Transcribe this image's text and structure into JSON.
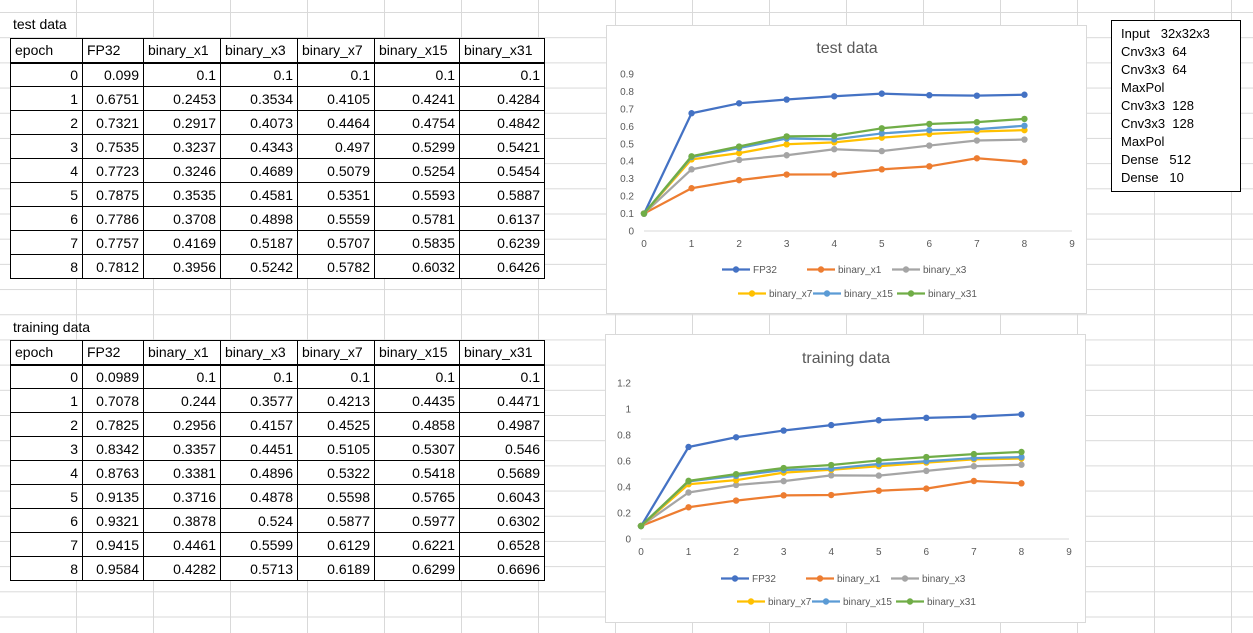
{
  "tables": [
    {
      "caption": "test data",
      "headers": [
        "epoch",
        "FP32",
        "binary_x1",
        "binary_x3",
        "binary_x7",
        "binary_x15",
        "binary_x31"
      ],
      "rows": [
        [
          "0",
          "0.099",
          "0.1",
          "0.1",
          "0.1",
          "0.1",
          "0.1"
        ],
        [
          "1",
          "0.6751",
          "0.2453",
          "0.3534",
          "0.4105",
          "0.4241",
          "0.4284"
        ],
        [
          "2",
          "0.7321",
          "0.2917",
          "0.4073",
          "0.4464",
          "0.4754",
          "0.4842"
        ],
        [
          "3",
          "0.7535",
          "0.3237",
          "0.4343",
          "0.497",
          "0.5299",
          "0.5421"
        ],
        [
          "4",
          "0.7723",
          "0.3246",
          "0.4689",
          "0.5079",
          "0.5254",
          "0.5454"
        ],
        [
          "5",
          "0.7875",
          "0.3535",
          "0.4581",
          "0.5351",
          "0.5593",
          "0.5887"
        ],
        [
          "6",
          "0.7786",
          "0.3708",
          "0.4898",
          "0.5559",
          "0.5781",
          "0.6137"
        ],
        [
          "7",
          "0.7757",
          "0.4169",
          "0.5187",
          "0.5707",
          "0.5835",
          "0.6239"
        ],
        [
          "8",
          "0.7812",
          "0.3956",
          "0.5242",
          "0.5782",
          "0.6032",
          "0.6426"
        ]
      ]
    },
    {
      "caption": "training data",
      "headers": [
        "epoch",
        "FP32",
        "binary_x1",
        "binary_x3",
        "binary_x7",
        "binary_x15",
        "binary_x31"
      ],
      "rows": [
        [
          "0",
          "0.0989",
          "0.1",
          "0.1",
          "0.1",
          "0.1",
          "0.1"
        ],
        [
          "1",
          "0.7078",
          "0.244",
          "0.3577",
          "0.4213",
          "0.4435",
          "0.4471"
        ],
        [
          "2",
          "0.7825",
          "0.2956",
          "0.4157",
          "0.4525",
          "0.4858",
          "0.4987"
        ],
        [
          "3",
          "0.8342",
          "0.3357",
          "0.4451",
          "0.5105",
          "0.5307",
          "0.546"
        ],
        [
          "4",
          "0.8763",
          "0.3381",
          "0.4896",
          "0.5322",
          "0.5418",
          "0.5689"
        ],
        [
          "5",
          "0.9135",
          "0.3716",
          "0.4878",
          "0.5598",
          "0.5765",
          "0.6043"
        ],
        [
          "6",
          "0.9321",
          "0.3878",
          "0.524",
          "0.5877",
          "0.5977",
          "0.6302"
        ],
        [
          "7",
          "0.9415",
          "0.4461",
          "0.5599",
          "0.6129",
          "0.6221",
          "0.6528"
        ],
        [
          "8",
          "0.9584",
          "0.4282",
          "0.5713",
          "0.6189",
          "0.6299",
          "0.6696"
        ]
      ]
    }
  ],
  "architecture": [
    "Input   32x32x3",
    "Cnv3x3  64",
    "Cnv3x3  64",
    "MaxPol",
    "Cnv3x3  128",
    "Cnv3x3  128",
    "MaxPol",
    "Dense   512",
    "Dense   10"
  ],
  "chart_data": [
    {
      "type": "line",
      "title": "test data",
      "x": [
        0,
        1,
        2,
        3,
        4,
        5,
        6,
        7,
        8
      ],
      "xlim": [
        0,
        9
      ],
      "ylim": [
        0,
        0.9
      ],
      "yticks": [
        "0",
        "0.1",
        "0.2",
        "0.3",
        "0.4",
        "0.5",
        "0.6",
        "0.7",
        "0.8",
        "0.9"
      ],
      "xticks": [
        "0",
        "1",
        "2",
        "3",
        "4",
        "5",
        "6",
        "7",
        "8",
        "9"
      ],
      "grid": false,
      "legend": "bottom",
      "series": [
        {
          "name": "FP32",
          "color": "#4472c4",
          "values": [
            0.099,
            0.6751,
            0.7321,
            0.7535,
            0.7723,
            0.7875,
            0.7786,
            0.7757,
            0.7812
          ]
        },
        {
          "name": "binary_x1",
          "color": "#ed7d31",
          "values": [
            0.1,
            0.2453,
            0.2917,
            0.3237,
            0.3246,
            0.3535,
            0.3708,
            0.4169,
            0.3956
          ]
        },
        {
          "name": "binary_x3",
          "color": "#a5a5a5",
          "values": [
            0.1,
            0.3534,
            0.4073,
            0.4343,
            0.4689,
            0.4581,
            0.4898,
            0.5187,
            0.5242
          ]
        },
        {
          "name": "binary_x7",
          "color": "#ffc000",
          "values": [
            0.1,
            0.4105,
            0.4464,
            0.497,
            0.5079,
            0.5351,
            0.5559,
            0.5707,
            0.5782
          ]
        },
        {
          "name": "binary_x15",
          "color": "#5b9bd5",
          "values": [
            0.1,
            0.4241,
            0.4754,
            0.5299,
            0.5254,
            0.5593,
            0.5781,
            0.5835,
            0.6032
          ]
        },
        {
          "name": "binary_x31",
          "color": "#70ad47",
          "values": [
            0.1,
            0.4284,
            0.4842,
            0.5421,
            0.5454,
            0.5887,
            0.6137,
            0.6239,
            0.6426
          ]
        }
      ]
    },
    {
      "type": "line",
      "title": "training data",
      "x": [
        0,
        1,
        2,
        3,
        4,
        5,
        6,
        7,
        8
      ],
      "xlim": [
        0,
        9
      ],
      "ylim": [
        0,
        1.2
      ],
      "yticks": [
        "0",
        "0.2",
        "0.4",
        "0.6",
        "0.8",
        "1",
        "1.2"
      ],
      "xticks": [
        "0",
        "1",
        "2",
        "3",
        "4",
        "5",
        "6",
        "7",
        "8",
        "9"
      ],
      "grid": false,
      "legend": "bottom",
      "series": [
        {
          "name": "FP32",
          "color": "#4472c4",
          "values": [
            0.0989,
            0.7078,
            0.7825,
            0.8342,
            0.8763,
            0.9135,
            0.9321,
            0.9415,
            0.9584
          ]
        },
        {
          "name": "binary_x1",
          "color": "#ed7d31",
          "values": [
            0.1,
            0.244,
            0.2956,
            0.3357,
            0.3381,
            0.3716,
            0.3878,
            0.4461,
            0.4282
          ]
        },
        {
          "name": "binary_x3",
          "color": "#a5a5a5",
          "values": [
            0.1,
            0.3577,
            0.4157,
            0.4451,
            0.4896,
            0.4878,
            0.524,
            0.5599,
            0.5713
          ]
        },
        {
          "name": "binary_x7",
          "color": "#ffc000",
          "values": [
            0.1,
            0.4213,
            0.4525,
            0.5105,
            0.5322,
            0.5598,
            0.5877,
            0.6129,
            0.6189
          ]
        },
        {
          "name": "binary_x15",
          "color": "#5b9bd5",
          "values": [
            0.1,
            0.4435,
            0.4858,
            0.5307,
            0.5418,
            0.5765,
            0.5977,
            0.6221,
            0.6299
          ]
        },
        {
          "name": "binary_x31",
          "color": "#70ad47",
          "values": [
            0.1,
            0.4471,
            0.4987,
            0.546,
            0.5689,
            0.6043,
            0.6302,
            0.6528,
            0.6696
          ]
        }
      ]
    }
  ]
}
